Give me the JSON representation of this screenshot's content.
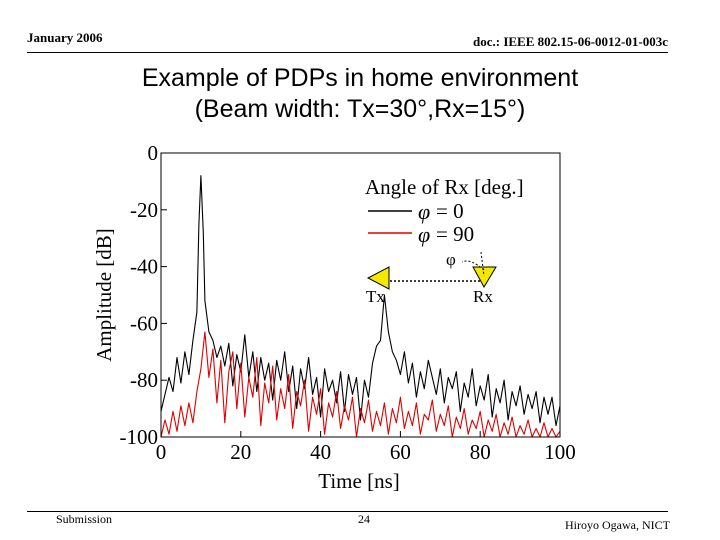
{
  "header": {
    "date": "January 2006",
    "doc_id": "doc.: IEEE 802.15-06-0012-01-003c"
  },
  "title": {
    "line1": "Example of PDPs in home environment",
    "line2": "(Beam width: Tx=30°,Rx=15°)"
  },
  "footer": {
    "left": "Submission",
    "page": "24",
    "author": "Hiroyo Ogawa, NICT"
  },
  "chart_data": {
    "type": "line",
    "xlabel": "Time [ns]",
    "ylabel": "Amplitude [dB]",
    "xlim": [
      0,
      100
    ],
    "ylim": [
      -100,
      0
    ],
    "xticks": [
      0,
      20,
      40,
      60,
      80,
      100
    ],
    "yticks": [
      0,
      -20,
      -40,
      -60,
      -80,
      -100
    ],
    "grid": false,
    "legend": {
      "title": "Angle of Rx [deg.]",
      "placement": "top-right",
      "phi_symbol": "φ"
    },
    "inset": {
      "tx_label": "Tx",
      "rx_label": "Rx",
      "angle_label": "φ",
      "marker_color": "#f5e800"
    },
    "series": [
      {
        "name": "= 0",
        "color": "#000000",
        "points": [
          [
            0,
            -91
          ],
          [
            1,
            -85
          ],
          [
            2,
            -79
          ],
          [
            3,
            -84
          ],
          [
            4,
            -72
          ],
          [
            5,
            -81
          ],
          [
            6,
            -70
          ],
          [
            7,
            -78
          ],
          [
            8,
            -66
          ],
          [
            9,
            -56
          ],
          [
            9.5,
            -25
          ],
          [
            10,
            -8
          ],
          [
            10.6,
            -28
          ],
          [
            11,
            -52
          ],
          [
            12,
            -63
          ],
          [
            13,
            -66
          ],
          [
            14,
            -72
          ],
          [
            15,
            -68
          ],
          [
            16,
            -75
          ],
          [
            17,
            -67
          ],
          [
            18,
            -82
          ],
          [
            19,
            -71
          ],
          [
            20,
            -77
          ],
          [
            21,
            -64
          ],
          [
            22,
            -79
          ],
          [
            23,
            -70
          ],
          [
            24,
            -84
          ],
          [
            25,
            -72
          ],
          [
            26,
            -80
          ],
          [
            27,
            -74
          ],
          [
            28,
            -87
          ],
          [
            29,
            -73
          ],
          [
            30,
            -80
          ],
          [
            31,
            -70
          ],
          [
            32,
            -84
          ],
          [
            33,
            -75
          ],
          [
            34,
            -90
          ],
          [
            35,
            -76
          ],
          [
            36,
            -83
          ],
          [
            37,
            -72
          ],
          [
            38,
            -85
          ],
          [
            39,
            -79
          ],
          [
            40,
            -93
          ],
          [
            41,
            -76
          ],
          [
            42,
            -84
          ],
          [
            43,
            -80
          ],
          [
            44,
            -88
          ],
          [
            45,
            -77
          ],
          [
            46,
            -91
          ],
          [
            47,
            -78
          ],
          [
            48,
            -85
          ],
          [
            49,
            -79
          ],
          [
            50,
            -94
          ],
          [
            51,
            -80
          ],
          [
            52,
            -86
          ],
          [
            53,
            -74
          ],
          [
            54,
            -68
          ],
          [
            55,
            -66
          ],
          [
            56,
            -50
          ],
          [
            57,
            -63
          ],
          [
            58,
            -70
          ],
          [
            59,
            -73
          ],
          [
            60,
            -78
          ],
          [
            61,
            -70
          ],
          [
            62,
            -81
          ],
          [
            63,
            -74
          ],
          [
            64,
            -86
          ],
          [
            65,
            -77
          ],
          [
            66,
            -83
          ],
          [
            67,
            -73
          ],
          [
            68,
            -79
          ],
          [
            69,
            -85
          ],
          [
            70,
            -76
          ],
          [
            71,
            -88
          ],
          [
            72,
            -79
          ],
          [
            73,
            -83
          ],
          [
            74,
            -77
          ],
          [
            75,
            -91
          ],
          [
            76,
            -81
          ],
          [
            77,
            -86
          ],
          [
            78,
            -76
          ],
          [
            79,
            -89
          ],
          [
            80,
            -82
          ],
          [
            81,
            -87
          ],
          [
            82,
            -78
          ],
          [
            83,
            -93
          ],
          [
            84,
            -83
          ],
          [
            85,
            -88
          ],
          [
            86,
            -80
          ],
          [
            87,
            -94
          ],
          [
            88,
            -84
          ],
          [
            89,
            -89
          ],
          [
            90,
            -82
          ],
          [
            91,
            -92
          ],
          [
            92,
            -85
          ],
          [
            93,
            -90
          ],
          [
            94,
            -84
          ],
          [
            95,
            -95
          ],
          [
            96,
            -86
          ],
          [
            97,
            -92
          ],
          [
            98,
            -86
          ],
          [
            99,
            -96
          ],
          [
            100,
            -89
          ]
        ]
      },
      {
        "name": "= 90",
        "color": "#e00000",
        "points": [
          [
            0,
            -100
          ],
          [
            1,
            -94
          ],
          [
            2,
            -99
          ],
          [
            3,
            -91
          ],
          [
            4,
            -98
          ],
          [
            5,
            -89
          ],
          [
            6,
            -96
          ],
          [
            7,
            -88
          ],
          [
            8,
            -95
          ],
          [
            9,
            -84
          ],
          [
            10,
            -76
          ],
          [
            11,
            -63
          ],
          [
            12,
            -79
          ],
          [
            13,
            -69
          ],
          [
            14,
            -88
          ],
          [
            15,
            -73
          ],
          [
            16,
            -95
          ],
          [
            17,
            -77
          ],
          [
            18,
            -70
          ],
          [
            19,
            -90
          ],
          [
            20,
            -74
          ],
          [
            21,
            -93
          ],
          [
            22,
            -79
          ],
          [
            23,
            -86
          ],
          [
            24,
            -72
          ],
          [
            25,
            -96
          ],
          [
            26,
            -81
          ],
          [
            27,
            -88
          ],
          [
            28,
            -75
          ],
          [
            29,
            -94
          ],
          [
            30,
            -83
          ],
          [
            31,
            -90
          ],
          [
            32,
            -78
          ],
          [
            33,
            -97
          ],
          [
            34,
            -84
          ],
          [
            35,
            -89
          ],
          [
            36,
            -80
          ],
          [
            37,
            -98
          ],
          [
            38,
            -86
          ],
          [
            39,
            -92
          ],
          [
            40,
            -83
          ],
          [
            41,
            -99
          ],
          [
            42,
            -88
          ],
          [
            43,
            -93
          ],
          [
            44,
            -84
          ],
          [
            45,
            -97
          ],
          [
            46,
            -89
          ],
          [
            47,
            -94
          ],
          [
            48,
            -86
          ],
          [
            49,
            -100
          ],
          [
            50,
            -90
          ],
          [
            51,
            -95
          ],
          [
            52,
            -87
          ],
          [
            53,
            -98
          ],
          [
            54,
            -91
          ],
          [
            55,
            -96
          ],
          [
            56,
            -88
          ],
          [
            57,
            -99
          ],
          [
            58,
            -90
          ],
          [
            59,
            -95
          ],
          [
            60,
            -86
          ],
          [
            61,
            -97
          ],
          [
            62,
            -91
          ],
          [
            63,
            -96
          ],
          [
            64,
            -88
          ],
          [
            65,
            -99
          ],
          [
            66,
            -92
          ],
          [
            67,
            -94
          ],
          [
            68,
            -87
          ],
          [
            69,
            -98
          ],
          [
            70,
            -92
          ],
          [
            71,
            -96
          ],
          [
            72,
            -89
          ],
          [
            73,
            -100
          ],
          [
            74,
            -93
          ],
          [
            75,
            -97
          ],
          [
            76,
            -90
          ],
          [
            77,
            -99
          ],
          [
            78,
            -94
          ],
          [
            79,
            -97
          ],
          [
            80,
            -91
          ],
          [
            81,
            -100
          ],
          [
            82,
            -94
          ],
          [
            83,
            -98
          ],
          [
            84,
            -92
          ],
          [
            85,
            -100
          ],
          [
            86,
            -95
          ],
          [
            87,
            -99
          ],
          [
            88,
            -93
          ],
          [
            89,
            -100
          ],
          [
            90,
            -96
          ],
          [
            91,
            -99
          ],
          [
            92,
            -94
          ],
          [
            93,
            -100
          ],
          [
            94,
            -97
          ],
          [
            95,
            -100
          ],
          [
            96,
            -95
          ],
          [
            97,
            -100
          ],
          [
            98,
            -97
          ],
          [
            99,
            -100
          ],
          [
            100,
            -98
          ]
        ]
      }
    ]
  }
}
